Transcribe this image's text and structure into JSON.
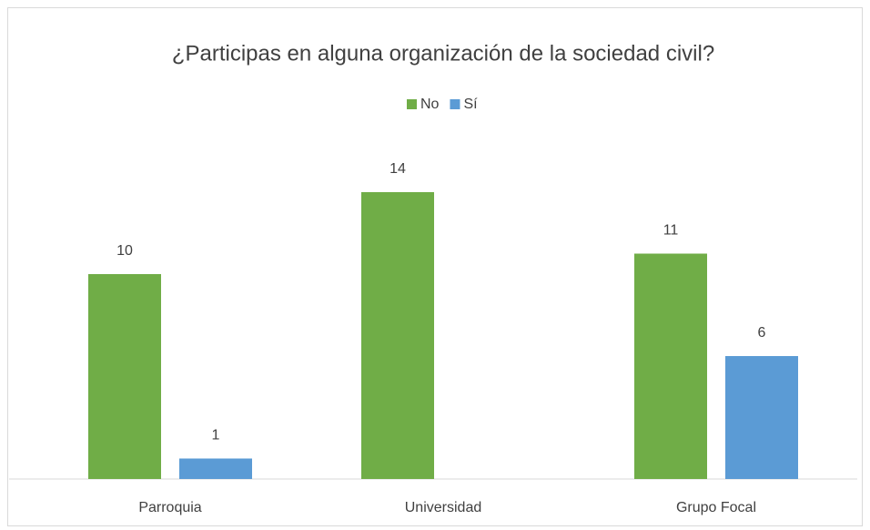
{
  "chart_data": {
    "type": "bar",
    "title": "¿Participas en alguna organización de la sociedad civil?",
    "categories": [
      "Parroquia",
      "Universidad",
      "Grupo Focal"
    ],
    "series": [
      {
        "name": "No",
        "color": "#70ad47",
        "values": [
          10,
          14,
          11
        ]
      },
      {
        "name": "Sí",
        "color": "#5b9bd5",
        "values": [
          1,
          null,
          6
        ]
      }
    ],
    "ylim": [
      0,
      16
    ],
    "legend": "top"
  }
}
